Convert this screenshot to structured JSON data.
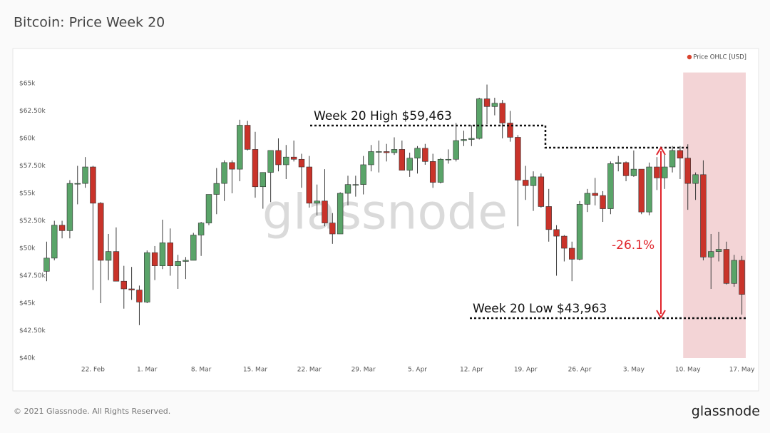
{
  "chart_data": {
    "type": "candlestick",
    "title": "Bitcoin: Price Week 20",
    "watermark": "glassnode",
    "footer": "© 2021 Glassnode. All Rights Reserved.",
    "logo": "glassnode",
    "annotations": [
      "Week 20 High $59,463",
      "Week 20 Low $43,963",
      "-26.1%"
    ],
    "legend": "top-right",
    "categories": [
      null,
      null,
      null,
      null,
      null,
      null,
      "22. Feb",
      null,
      null,
      null,
      null,
      null,
      null,
      "1. Mar",
      null,
      null,
      null,
      null,
      null,
      null,
      "8. Mar",
      null,
      null,
      null,
      null,
      null,
      null,
      "15. Mar",
      null,
      null,
      null,
      null,
      null,
      null,
      "22. Mar",
      null,
      null,
      null,
      null,
      null,
      null,
      "29. Mar",
      null,
      null,
      null,
      null,
      null,
      null,
      "5. Apr",
      null,
      null,
      null,
      null,
      null,
      null,
      "12. Apr",
      null,
      null,
      null,
      null,
      null,
      null,
      "19. Apr",
      null,
      null,
      null,
      null,
      null,
      null,
      "26. Apr",
      null,
      null,
      null,
      null,
      null,
      null,
      "3. May",
      null,
      null,
      null,
      null,
      null,
      null,
      "10. May",
      null,
      null,
      null,
      null,
      null,
      null,
      "17. May"
    ],
    "series": [
      {
        "name": "Price OHLC [USD]",
        "up_color": "#5aa469",
        "down_color": "#c9332a",
        "legend_color": "#d9442f",
        "open": [
          47900,
          49100,
          52100,
          51600,
          55900,
          55900,
          57400,
          54100,
          48900,
          49700,
          47000,
          46300,
          46200,
          45100,
          49600,
          48400,
          50500,
          48400,
          48800,
          48900,
          51200,
          52300,
          54900,
          55900,
          57800,
          57200,
          61200,
          59000,
          55600,
          56900,
          58900,
          57600,
          58300,
          58100,
          57400,
          54100,
          54300,
          52300,
          51300,
          55000,
          55800,
          55800,
          57600,
          58800,
          58800,
          58700,
          59000,
          57100,
          58200,
          59100,
          57900,
          56000,
          58100,
          58100,
          59800,
          59900,
          60000,
          63600,
          62900,
          63200,
          61400,
          60100,
          56200,
          55700,
          56500,
          53800,
          51700,
          51100,
          50000,
          49000,
          54000,
          55000,
          54800,
          53600,
          57700,
          57800,
          56600,
          57200,
          53300,
          57400,
          56400,
          57400,
          58900,
          58200,
          55900,
          56700,
          49200,
          49700,
          49900,
          46800,
          48900
        ],
        "high": [
          50600,
          52500,
          52500,
          56200,
          57500,
          58300,
          57500,
          54200,
          51300,
          51900,
          48400,
          48300,
          46600,
          49800,
          50200,
          52600,
          51800,
          49400,
          49200,
          51400,
          52400,
          54900,
          57300,
          58000,
          58000,
          61700,
          61600,
          60600,
          56900,
          58900,
          60000,
          59400,
          59800,
          58600,
          58400,
          55800,
          57200,
          53200,
          55100,
          56600,
          56600,
          58400,
          59400,
          59800,
          59500,
          60100,
          59800,
          58700,
          59300,
          59500,
          58600,
          58200,
          59000,
          61400,
          60700,
          61200,
          63700,
          64900,
          63700,
          63500,
          62500,
          60300,
          57500,
          57000,
          56800,
          55400,
          52100,
          51200,
          50600,
          54300,
          55400,
          56400,
          55200,
          57900,
          58400,
          57900,
          58900,
          57200,
          57800,
          58300,
          58600,
          59300,
          59300,
          59463,
          56900,
          58000,
          51300,
          51500,
          50600,
          49400,
          49300
        ],
        "low": [
          47000,
          48900,
          50900,
          50900,
          54000,
          55500,
          46200,
          45000,
          47100,
          47000,
          44500,
          45300,
          43000,
          45000,
          47100,
          48100,
          47500,
          46300,
          47200,
          48900,
          49300,
          52100,
          53100,
          54300,
          55000,
          56100,
          58900,
          54600,
          53600,
          54200,
          57000,
          56300,
          57900,
          55500,
          53700,
          53000,
          52000,
          50400,
          51300,
          53900,
          54700,
          54900,
          57000,
          56900,
          57900,
          58500,
          57100,
          56500,
          56800,
          57600,
          55500,
          55900,
          57700,
          57900,
          59300,
          59300,
          59900,
          61300,
          62100,
          60000,
          59700,
          52000,
          54400,
          53400,
          53700,
          50600,
          47500,
          48800,
          47000,
          48900,
          53300,
          53900,
          52400,
          53100,
          57000,
          56100,
          56500,
          53100,
          53000,
          55300,
          55400,
          56900,
          56300,
          53500,
          54400,
          48900,
          46300,
          48800,
          46700,
          46500,
          43963
        ],
        "close": [
          49100,
          52100,
          51600,
          55900,
          55900,
          57400,
          54100,
          48900,
          49700,
          47000,
          46300,
          46200,
          45100,
          49600,
          48400,
          50500,
          48400,
          48800,
          48900,
          51200,
          52300,
          54900,
          55900,
          57800,
          57200,
          61200,
          59000,
          55600,
          56900,
          58900,
          57600,
          58300,
          58100,
          57400,
          54100,
          54300,
          52300,
          51300,
          55000,
          55800,
          55800,
          57600,
          58800,
          58800,
          58700,
          59000,
          57100,
          58200,
          59100,
          57900,
          56000,
          58100,
          58100,
          59800,
          59900,
          60000,
          63600,
          62900,
          63200,
          61400,
          60100,
          56200,
          55700,
          56500,
          53800,
          51700,
          51100,
          50000,
          49000,
          54000,
          55000,
          54800,
          53600,
          57700,
          57800,
          56600,
          57200,
          53300,
          57400,
          56400,
          57400,
          58900,
          58200,
          55900,
          56700,
          49200,
          49700,
          49900,
          46800,
          48900,
          45800
        ]
      }
    ],
    "ylim": [
      40000,
      66000
    ],
    "yticks": [
      {
        "value": 40000,
        "label": "$40k"
      },
      {
        "value": 42500,
        "label": "$42.50k"
      },
      {
        "value": 45000,
        "label": "$45k"
      },
      {
        "value": 47500,
        "label": "$47.50k"
      },
      {
        "value": 50000,
        "label": "$50k"
      },
      {
        "value": 52500,
        "label": "$52.50k"
      },
      {
        "value": 55000,
        "label": "$55k"
      },
      {
        "value": 57500,
        "label": "$57.50k"
      },
      {
        "value": 60000,
        "label": "$60k"
      },
      {
        "value": 62500,
        "label": "$62.50k"
      },
      {
        "value": 65000,
        "label": "$65k"
      }
    ]
  }
}
